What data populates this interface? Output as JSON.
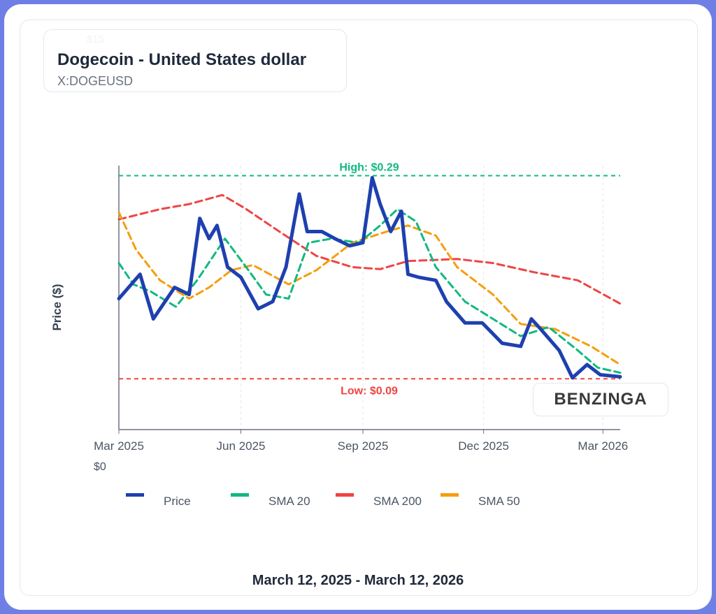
{
  "header": {
    "title": "Dogecoin - United States dollar",
    "ticker": "X:DOGEUSD",
    "ghost_tick": "$15"
  },
  "brand": "BENZINGA",
  "range_label": "March 12, 2025 - March 12, 2026",
  "chart_data": {
    "type": "line",
    "title": "Dogecoin - United States dollar",
    "xlabel": "",
    "ylabel": "Price ($)",
    "x_domain": [
      "2025-03-01",
      "2026-03-14"
    ],
    "ylim": [
      0.04,
      0.3
    ],
    "y_tick_labels": [
      "$0"
    ],
    "x_ticks": [
      {
        "date": "2025-03-01",
        "label": "Mar 2025"
      },
      {
        "date": "2025-06-01",
        "label": "Jun 2025"
      },
      {
        "date": "2025-09-01",
        "label": "Sep 2025"
      },
      {
        "date": "2025-12-01",
        "label": "Dec 2025"
      },
      {
        "date": "2026-03-01",
        "label": "Mar 2026"
      }
    ],
    "grid": "vertical dashed",
    "legend_position": "bottom",
    "high": {
      "value": 0.29,
      "label": "High: $0.29",
      "color": "#10b981"
    },
    "low": {
      "value": 0.09,
      "label": "Low: $0.09",
      "color": "#ef4444"
    },
    "series": [
      {
        "name": "Price",
        "color": "#1e40af",
        "width": 5,
        "dashed": false,
        "x": [
          "2025-03-01",
          "2025-03-17",
          "2025-03-27",
          "2025-04-12",
          "2025-04-23",
          "2025-05-01",
          "2025-05-08",
          "2025-05-14",
          "2025-05-22",
          "2025-06-01",
          "2025-06-14",
          "2025-06-25",
          "2025-07-05",
          "2025-07-15",
          "2025-07-21",
          "2025-08-01",
          "2025-08-11",
          "2025-08-22",
          "2025-09-01",
          "2025-09-08",
          "2025-09-14",
          "2025-09-22",
          "2025-09-30",
          "2025-10-05",
          "2025-10-13",
          "2025-10-26",
          "2025-11-03",
          "2025-11-17",
          "2025-11-30",
          "2025-12-15",
          "2025-12-29",
          "2026-01-06",
          "2026-01-13",
          "2026-01-27",
          "2026-02-06",
          "2026-02-17",
          "2026-02-27",
          "2026-03-14"
        ],
        "y": [
          0.169,
          0.193,
          0.149,
          0.18,
          0.173,
          0.248,
          0.228,
          0.241,
          0.2,
          0.19,
          0.159,
          0.166,
          0.2,
          0.272,
          0.235,
          0.235,
          0.228,
          0.221,
          0.224,
          0.288,
          0.262,
          0.235,
          0.255,
          0.193,
          0.19,
          0.187,
          0.166,
          0.145,
          0.145,
          0.125,
          0.122,
          0.149,
          0.139,
          0.118,
          0.091,
          0.104,
          0.094,
          0.092
        ]
      },
      {
        "name": "SMA 20",
        "color": "#10b981",
        "width": 3,
        "dashed": true,
        "x": [
          "2025-03-01",
          "2025-03-12",
          "2025-03-25",
          "2025-04-13",
          "2025-04-29",
          "2025-05-20",
          "2025-06-05",
          "2025-06-20",
          "2025-07-07",
          "2025-07-22",
          "2025-08-08",
          "2025-08-29",
          "2025-09-14",
          "2025-09-27",
          "2025-10-11",
          "2025-10-26",
          "2025-11-17",
          "2025-12-08",
          "2025-12-29",
          "2026-01-19",
          "2026-02-10",
          "2026-02-25",
          "2026-03-14"
        ],
        "y": [
          0.204,
          0.183,
          0.176,
          0.161,
          0.187,
          0.228,
          0.2,
          0.173,
          0.169,
          0.224,
          0.228,
          0.224,
          0.241,
          0.257,
          0.245,
          0.2,
          0.166,
          0.149,
          0.132,
          0.141,
          0.118,
          0.101,
          0.096
        ]
      },
      {
        "name": "SMA 200",
        "color": "#ef4444",
        "width": 3,
        "dashed": true,
        "x": [
          "2025-03-01",
          "2025-04-01",
          "2025-04-23",
          "2025-05-18",
          "2025-06-04",
          "2025-06-30",
          "2025-07-28",
          "2025-08-24",
          "2025-09-14",
          "2025-10-05",
          "2025-11-11",
          "2025-12-08",
          "2026-01-08",
          "2026-02-10",
          "2026-03-14"
        ],
        "y": [
          0.247,
          0.257,
          0.262,
          0.271,
          0.258,
          0.235,
          0.211,
          0.2,
          0.198,
          0.206,
          0.208,
          0.204,
          0.195,
          0.187,
          0.164
        ]
      },
      {
        "name": "SMA 50",
        "color": "#f59e0b",
        "width": 3,
        "dashed": true,
        "x": [
          "2025-03-01",
          "2025-03-14",
          "2025-04-01",
          "2025-04-23",
          "2025-05-08",
          "2025-05-25",
          "2025-06-10",
          "2025-07-07",
          "2025-07-28",
          "2025-08-24",
          "2025-09-19",
          "2025-10-05",
          "2025-10-26",
          "2025-11-11",
          "2025-12-08",
          "2025-12-29",
          "2026-01-24",
          "2026-02-20",
          "2026-03-14"
        ],
        "y": [
          0.254,
          0.217,
          0.187,
          0.169,
          0.18,
          0.197,
          0.202,
          0.183,
          0.197,
          0.224,
          0.235,
          0.241,
          0.231,
          0.2,
          0.173,
          0.144,
          0.139,
          0.122,
          0.104
        ]
      }
    ]
  }
}
